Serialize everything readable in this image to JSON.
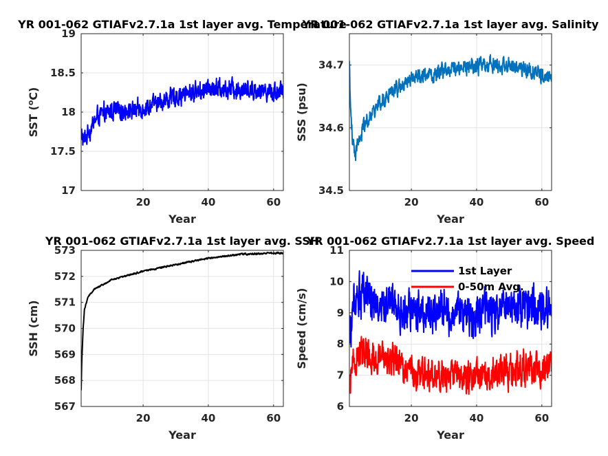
{
  "chart_data": [
    {
      "type": "line",
      "title": "YR 001-062 GTIAFv2.7.1a 1st layer avg. Temperature",
      "xlabel": "Year",
      "ylabel": "SST (",
      "ylabel_sup": "o",
      "ylabel_tail": "C)",
      "xlim": [
        1,
        63
      ],
      "ylim": [
        17,
        19
      ],
      "xticks": [
        20,
        40,
        60
      ],
      "yticks": [
        17,
        17.5,
        18,
        18.5,
        19
      ],
      "ytick_labels": [
        "17",
        "17.5",
        "18",
        "18.5",
        "19"
      ],
      "grid": true,
      "series": [
        {
          "color": "#0000ff",
          "noise": 0.3,
          "knots": [
            [
              1,
              17.7
            ],
            [
              2,
              17.65
            ],
            [
              4,
              17.8
            ],
            [
              6,
              17.95
            ],
            [
              10,
              18.0
            ],
            [
              20,
              18.05
            ],
            [
              30,
              18.2
            ],
            [
              40,
              18.3
            ],
            [
              50,
              18.3
            ],
            [
              63,
              18.25
            ]
          ]
        }
      ]
    },
    {
      "type": "line",
      "title": "YR 001-062 GTIAFv2.7.1a 1st layer avg. Salinity",
      "xlabel": "Year",
      "ylabel": "SSS (psu)",
      "xlim": [
        1,
        63
      ],
      "ylim": [
        34.5,
        34.75
      ],
      "xticks": [
        20,
        40,
        60
      ],
      "yticks": [
        34.5,
        34.6,
        34.7
      ],
      "ytick_labels": [
        "34.5",
        "34.6",
        "34.7"
      ],
      "grid": true,
      "series": [
        {
          "color": "#0072bd",
          "noise": 0.032,
          "knots": [
            [
              1,
              34.7
            ],
            [
              1.3,
              34.63
            ],
            [
              2,
              34.58
            ],
            [
              3,
              34.56
            ],
            [
              5,
              34.6
            ],
            [
              10,
              34.64
            ],
            [
              20,
              34.68
            ],
            [
              30,
              34.69
            ],
            [
              40,
              34.7
            ],
            [
              50,
              34.7
            ],
            [
              63,
              34.68
            ]
          ]
        }
      ]
    },
    {
      "type": "line",
      "title": "YR 001-062 GTIAFv2.7.1a 1st layer avg. SSH",
      "xlabel": "Year",
      "ylabel": "SSH (cm)",
      "xlim": [
        1,
        63
      ],
      "ylim": [
        567,
        573
      ],
      "xticks": [
        20,
        40,
        60
      ],
      "yticks": [
        567,
        568,
        569,
        570,
        571,
        572,
        573
      ],
      "ytick_labels": [
        "567",
        "568",
        "569",
        "570",
        "571",
        "572",
        "573"
      ],
      "grid": true,
      "series": [
        {
          "color": "#000000",
          "noise": 0.08,
          "knots": [
            [
              1,
              567.6
            ],
            [
              1.2,
              568.8
            ],
            [
              1.6,
              570.0
            ],
            [
              2,
              570.7
            ],
            [
              3,
              571.2
            ],
            [
              5,
              571.5
            ],
            [
              10,
              571.85
            ],
            [
              20,
              572.2
            ],
            [
              30,
              572.45
            ],
            [
              40,
              572.7
            ],
            [
              50,
              572.85
            ],
            [
              63,
              572.9
            ]
          ]
        }
      ]
    },
    {
      "type": "line",
      "title": "YR 001-062 GTIAFv2.7.1a 1st layer avg. Speed",
      "xlabel": "Year",
      "ylabel": "Speed (cm/s)",
      "xlim": [
        1,
        63
      ],
      "ylim": [
        6,
        11
      ],
      "xticks": [
        20,
        40,
        60
      ],
      "yticks": [
        6,
        7,
        8,
        9,
        10,
        11
      ],
      "ytick_labels": [
        "6",
        "7",
        "8",
        "9",
        "10",
        "11"
      ],
      "grid": true,
      "legend": "top-center",
      "series": [
        {
          "name": "1st Layer",
          "color": "#0000ff",
          "noise": 1.6,
          "knots": [
            [
              1,
              8.0
            ],
            [
              2,
              9.3
            ],
            [
              5,
              9.6
            ],
            [
              10,
              9.3
            ],
            [
              15,
              9.2
            ],
            [
              20,
              9.1
            ],
            [
              30,
              9.0
            ],
            [
              40,
              9.0
            ],
            [
              50,
              9.2
            ],
            [
              63,
              9.2
            ]
          ]
        },
        {
          "name": "0-50m Avg.",
          "color": "#ff0000",
          "noise": 1.3,
          "knots": [
            [
              1,
              6.5
            ],
            [
              2,
              7.4
            ],
            [
              5,
              7.7
            ],
            [
              10,
              7.5
            ],
            [
              15,
              7.5
            ],
            [
              20,
              7.1
            ],
            [
              30,
              7.0
            ],
            [
              40,
              7.0
            ],
            [
              50,
              7.1
            ],
            [
              63,
              7.3
            ]
          ]
        }
      ]
    }
  ]
}
